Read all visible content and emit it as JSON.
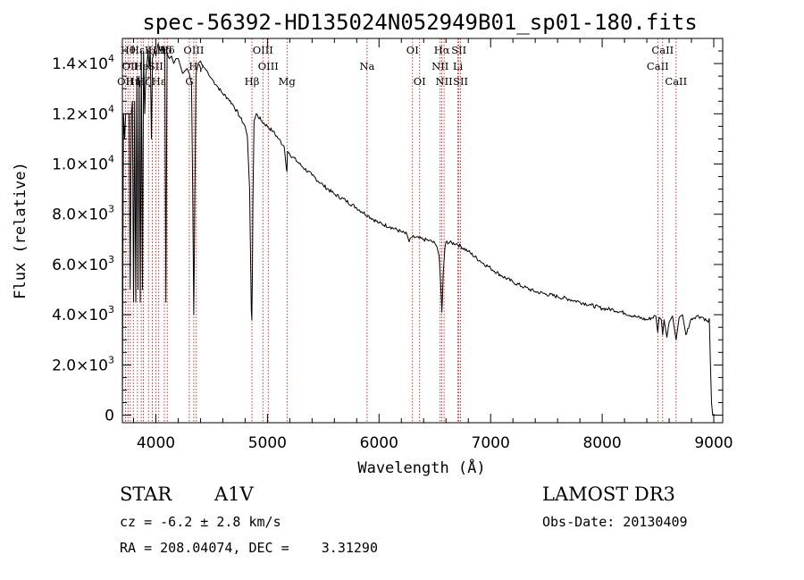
{
  "chart_data": {
    "type": "line",
    "title": "spec-56392-HD135024N052949B01_sp01-180.fits",
    "xlabel": "Wavelength (Å)",
    "ylabel": "Flux (relative)",
    "xlim": [
      3700,
      9080
    ],
    "ylim": [
      -300,
      15000
    ],
    "x_ticks": [
      4000,
      5000,
      6000,
      7000,
      8000,
      9000
    ],
    "y_ticks": [
      {
        "value": 0,
        "mantissa": "0",
        "exp": ""
      },
      {
        "value": 2000,
        "mantissa": "2.0×10",
        "exp": "3"
      },
      {
        "value": 4000,
        "mantissa": "4.0×10",
        "exp": "3"
      },
      {
        "value": 6000,
        "mantissa": "6.0×10",
        "exp": "3"
      },
      {
        "value": 8000,
        "mantissa": "8.0×10",
        "exp": "3"
      },
      {
        "value": 10000,
        "mantissa": "1.0×10",
        "exp": "4"
      },
      {
        "value": 12000,
        "mantissa": "1.2×10",
        "exp": "4"
      },
      {
        "value": 14000,
        "mantissa": "1.4×10",
        "exp": "4"
      }
    ],
    "series": [
      {
        "name": "spectrum",
        "x": [
          3700,
          3710,
          3720,
          3730,
          3740,
          3750,
          3760,
          3770,
          3780,
          3790,
          3800,
          3810,
          3820,
          3830,
          3840,
          3850,
          3860,
          3870,
          3880,
          3890,
          3900,
          3910,
          3920,
          3930,
          3940,
          3950,
          3960,
          3970,
          3980,
          3990,
          4000,
          4020,
          4040,
          4060,
          4070,
          4080,
          4090,
          4100,
          4110,
          4120,
          4140,
          4160,
          4180,
          4200,
          4220,
          4240,
          4260,
          4280,
          4300,
          4320,
          4330,
          4335,
          4340,
          4345,
          4350,
          4360,
          4380,
          4400,
          4420,
          4440,
          4460,
          4480,
          4500,
          4550,
          4600,
          4650,
          4700,
          4750,
          4800,
          4820,
          4840,
          4850,
          4855,
          4860,
          4865,
          4870,
          4880,
          4900,
          4950,
          5000,
          5050,
          5100,
          5150,
          5170,
          5175,
          5180,
          5200,
          5300,
          5400,
          5500,
          5600,
          5700,
          5800,
          5900,
          6000,
          6100,
          6200,
          6250,
          6270,
          6280,
          6300,
          6400,
          6450,
          6500,
          6520,
          6540,
          6550,
          6558,
          6563,
          6568,
          6575,
          6590,
          6600,
          6700,
          6800,
          6900,
          7000,
          7100,
          7200,
          7300,
          7400,
          7500,
          7600,
          7700,
          7800,
          7900,
          8000,
          8100,
          8200,
          8300,
          8400,
          8480,
          8498,
          8510,
          8530,
          8542,
          8555,
          8580,
          8600,
          8630,
          8662,
          8690,
          8720,
          8750,
          8800,
          8850,
          8900,
          8950,
          8960,
          8970,
          8980,
          8990,
          9000
        ],
        "values": [
          0,
          12000,
          11000,
          12000,
          12000,
          12000,
          12000,
          5000,
          12000,
          12500,
          4500,
          12500,
          4500,
          13500,
          5000,
          13500,
          4500,
          14500,
          5000,
          14500,
          12000,
          13500,
          14000,
          14500,
          13800,
          14600,
          11000,
          14200,
          14400,
          14600,
          14300,
          14800,
          14500,
          14700,
          14400,
          14600,
          4500,
          14400,
          14300,
          14200,
          14300,
          14000,
          14200,
          14200,
          13900,
          13600,
          13700,
          13800,
          13600,
          13200,
          9000,
          6500,
          4000,
          6500,
          9000,
          13600,
          14000,
          14100,
          13900,
          13800,
          13700,
          13500,
          13400,
          13100,
          12800,
          12600,
          12300,
          11900,
          11500,
          11100,
          9000,
          6000,
          4200,
          3800,
          5500,
          8500,
          11700,
          12000,
          11700,
          11500,
          11300,
          11000,
          10700,
          9800,
          9700,
          10500,
          10400,
          9950,
          9550,
          9150,
          8800,
          8550,
          8250,
          7950,
          7650,
          7500,
          7300,
          7200,
          6900,
          7050,
          7100,
          7000,
          6950,
          6850,
          6700,
          6300,
          5400,
          4700,
          4100,
          4600,
          5600,
          6650,
          6900,
          6820,
          6520,
          6160,
          5850,
          5550,
          5300,
          5100,
          4920,
          4820,
          4720,
          4620,
          4510,
          4380,
          4250,
          4200,
          4070,
          3920,
          3800,
          3950,
          3300,
          3900,
          3800,
          3200,
          3800,
          3100,
          3700,
          3950,
          3000,
          3900,
          4000,
          3200,
          3850,
          3950,
          3900,
          3700,
          3850,
          2000,
          500,
          0,
          0
        ]
      }
    ],
    "lines": [
      {
        "wl": 3727,
        "label": "OII",
        "row": 3
      },
      {
        "wl": 3750,
        "label": "Hθ",
        "row": 1
      },
      {
        "wl": 3771,
        "label": "OII",
        "row": 2
      },
      {
        "wl": 3798,
        "label": "Hη",
        "row": 3
      },
      {
        "wl": 3835,
        "label": "Hε",
        "row": 1
      },
      {
        "wl": 3869,
        "label": "He",
        "row": 2
      },
      {
        "wl": 3889,
        "label": "Hζ",
        "row": 3
      },
      {
        "wl": 3934,
        "label": "K",
        "row": 1
      },
      {
        "wl": 3969,
        "label": "H",
        "row": 1
      },
      {
        "wl": 3999,
        "label": "SII",
        "row": 2
      },
      {
        "wl": 4026,
        "label": "Hε",
        "row": 3
      },
      {
        "wl": 4076,
        "label": "Hδ",
        "row": 1
      },
      {
        "wl": 4102,
        "label": "Hδ",
        "row": 1
      },
      {
        "wl": 4300,
        "label": "G",
        "row": 3
      },
      {
        "wl": 4340,
        "label": "OIII",
        "row": 1
      },
      {
        "wl": 4363,
        "label": "Hγ",
        "row": 2
      },
      {
        "wl": 4861,
        "label": "Hβ",
        "row": 3
      },
      {
        "wl": 4959,
        "label": "OIII",
        "row": 1
      },
      {
        "wl": 5007,
        "label": "OIII",
        "row": 2
      },
      {
        "wl": 5175,
        "label": "Mg",
        "row": 3
      },
      {
        "wl": 5893,
        "label": "Na",
        "row": 2
      },
      {
        "wl": 6300,
        "label": "OI",
        "row": 1
      },
      {
        "wl": 6364,
        "label": "OI",
        "row": 3
      },
      {
        "wl": 6548,
        "label": "NII",
        "row": 2
      },
      {
        "wl": 6563,
        "label": "Hα",
        "row": 1
      },
      {
        "wl": 6583,
        "label": "NII",
        "row": 3
      },
      {
        "wl": 6707,
        "label": "Li",
        "row": 2
      },
      {
        "wl": 6716,
        "label": "SII",
        "row": 1
      },
      {
        "wl": 6731,
        "label": "SII",
        "row": 3
      },
      {
        "wl": 8498,
        "label": "CaII",
        "row": 2
      },
      {
        "wl": 8542,
        "label": "CaII",
        "row": 1
      },
      {
        "wl": 8662,
        "label": "CaII",
        "row": 3
      }
    ]
  },
  "info": {
    "object_class": "STAR",
    "subclass": "A1V",
    "survey": "LAMOST DR3",
    "cz": "cz = -6.2 ± 2.8 km/s",
    "obs_date": "Obs-Date: 20130409",
    "coords": "RA = 208.04074, DEC =    3.31290"
  },
  "colors": {
    "line_marker": "#cc0000",
    "spectrum": "#000000",
    "axes": "#000000"
  }
}
